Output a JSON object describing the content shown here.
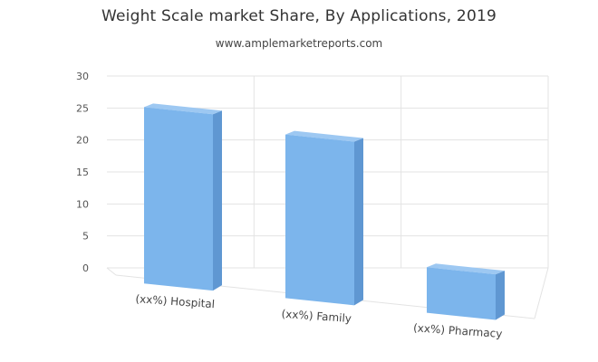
{
  "chart_data": {
    "type": "bar",
    "title": "Weight Scale market Share, By Applications, 2019",
    "subtitle": "www.amplemarketreports.com",
    "categories": [
      "(xx%) Hospital",
      "(xx%) Family",
      "(xx%) Pharmacy"
    ],
    "values": [
      27.5,
      25.5,
      7
    ],
    "ylim": [
      0,
      30
    ],
    "yticks": [
      0,
      5,
      10,
      15,
      20,
      25,
      30
    ],
    "grid": true,
    "legend": "none",
    "colors": {
      "bar": "#7cb5ec",
      "bar_side": "#5f97d2",
      "bar_top": "#9dc8f2",
      "grid": "#e3e3e3"
    }
  }
}
